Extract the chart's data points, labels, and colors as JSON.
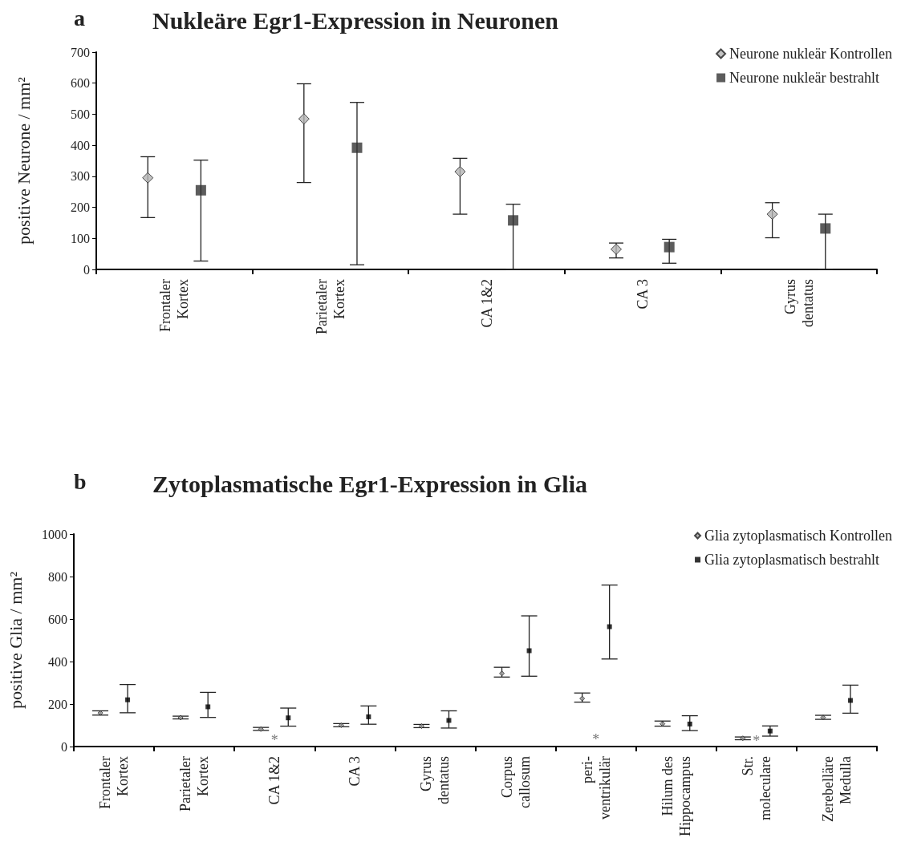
{
  "chart_data": [
    {
      "type": "scatter",
      "title": "Nukleäre Egr1-Expression in Neuronen",
      "annotations": [
        "a"
      ],
      "ylabel": "positive Neurone / mm²",
      "categories": [
        "Frontaler\nKortex",
        "Parietaler\nKortex",
        "CA 1&2",
        "CA 3",
        "Gyrus\ndentatus"
      ],
      "ylim": [
        0,
        700
      ],
      "yticks": [
        0,
        100,
        200,
        300,
        400,
        500,
        600,
        700
      ],
      "grid": false,
      "legend": "top right",
      "series": [
        {
          "name": "Neurone nukleär Kontrollen",
          "color": "#b4b4b4",
          "marker": "diamond",
          "values": [
            295,
            485,
            315,
            65,
            178
          ],
          "errors": [
            [
              167,
              363
            ],
            [
              280,
              598
            ],
            [
              178,
              358
            ],
            [
              37,
              85
            ],
            [
              102,
              215
            ]
          ]
        },
        {
          "name": "Neurone nukleär bestrahlt",
          "color": "#333333",
          "marker": "square",
          "values": [
            255,
            392,
            158,
            72,
            132
          ],
          "errors": [
            [
              27,
              352
            ],
            [
              15,
              538
            ],
            [
              0,
              210
            ],
            [
              20,
              97
            ],
            [
              0,
              178
            ]
          ]
        }
      ]
    },
    {
      "type": "scatter",
      "title": "Zytoplasmatische Egr1-Expression in Glia",
      "annotations": [
        "b",
        "*",
        "*",
        "*"
      ],
      "ylabel": "positive Glia / mm²",
      "categories": [
        "Frontaler\nKortex",
        "Parietaler\nKortex",
        "CA 1&2",
        "CA 3",
        "Gyrus\ndentatus",
        "Corpus\ncallosum",
        "peri-\nventrikulär",
        "Hilum des\nHippocampus",
        "Str.\nmoleculare",
        "Zerebelläre\nMedulla"
      ],
      "ylim": [
        0,
        1000
      ],
      "yticks": [
        0,
        200,
        400,
        600,
        800,
        1000
      ],
      "grid": false,
      "legend": "top right",
      "series": [
        {
          "name": "Glia zytoplasmatisch Kontrollen",
          "color": "#a0a0a0",
          "marker": "diamond",
          "values": [
            158,
            136,
            82,
            100,
            96,
            344,
            226,
            107,
            39,
            137
          ],
          "errors": [
            [
              148,
              168
            ],
            [
              130,
              143
            ],
            [
              76,
              90
            ],
            [
              93,
              108
            ],
            [
              89,
              104
            ],
            [
              327,
              373
            ],
            [
              209,
              252
            ],
            [
              96,
              120
            ],
            [
              32,
              45
            ],
            [
              128,
              147
            ]
          ]
        },
        {
          "name": "Glia zytoplasmatisch bestrahlt",
          "color": "#000000",
          "marker": "square",
          "values": [
            220,
            187,
            135,
            140,
            123,
            451,
            564,
            106,
            73,
            217
          ],
          "errors": [
            [
              159,
              292
            ],
            [
              137,
              255
            ],
            [
              96,
              181
            ],
            [
              105,
              191
            ],
            [
              87,
              168
            ],
            [
              331,
              615
            ],
            [
              412,
              760
            ],
            [
              75,
              145
            ],
            [
              49,
              97
            ],
            [
              157,
              289
            ]
          ]
        }
      ]
    }
  ]
}
